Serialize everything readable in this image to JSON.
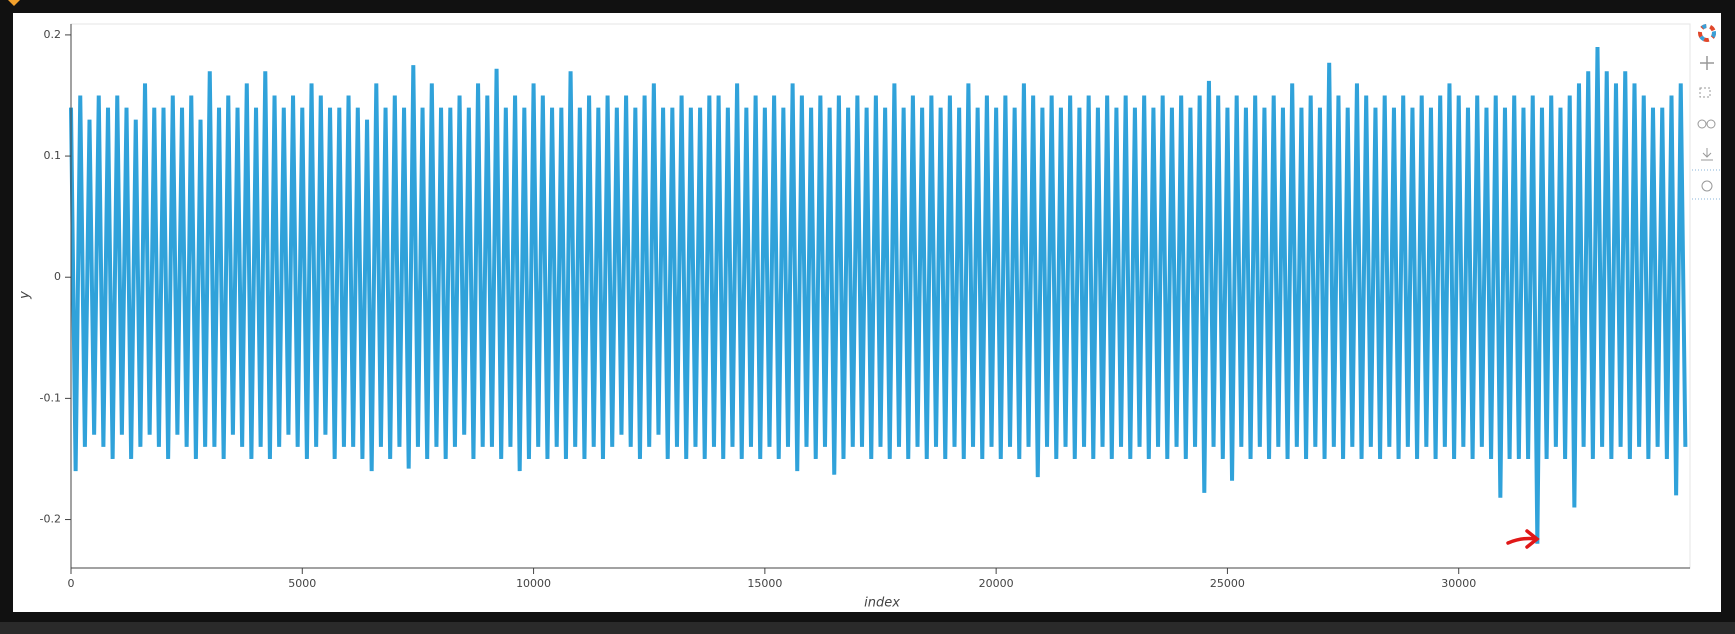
{
  "chart_data": {
    "type": "line",
    "x_label": "index",
    "y_label": "y",
    "color": "#30a2da",
    "xlim": [
      0,
      35000
    ],
    "ylim": [
      -0.24,
      0.209
    ],
    "xticks": [
      0,
      5000,
      10000,
      15000,
      20000,
      25000,
      30000
    ],
    "yticks": [
      -0.2,
      -0.1,
      0,
      0.1,
      0.2
    ],
    "x": [
      0,
      100,
      200,
      300,
      400,
      500,
      600,
      700,
      800,
      900,
      1000,
      1100,
      1200,
      1300,
      1400,
      1500,
      1600,
      1700,
      1800,
      1900,
      2000,
      2100,
      2200,
      2300,
      2400,
      2500,
      2600,
      2700,
      2800,
      2900,
      3000,
      3100,
      3200,
      3300,
      3400,
      3500,
      3600,
      3700,
      3800,
      3900,
      4000,
      4100,
      4200,
      4300,
      4400,
      4500,
      4600,
      4700,
      4800,
      4900,
      5000,
      5100,
      5200,
      5300,
      5400,
      5500,
      5600,
      5700,
      5800,
      5900,
      6000,
      6100,
      6200,
      6300,
      6400,
      6500,
      6600,
      6700,
      6800,
      6900,
      7000,
      7100,
      7200,
      7300,
      7400,
      7500,
      7600,
      7700,
      7800,
      7900,
      8000,
      8100,
      8200,
      8300,
      8400,
      8500,
      8600,
      8700,
      8800,
      8900,
      9000,
      9100,
      9200,
      9300,
      9400,
      9500,
      9600,
      9700,
      9800,
      9900,
      10000,
      10100,
      10200,
      10300,
      10400,
      10500,
      10600,
      10700,
      10800,
      10900,
      11000,
      11100,
      11200,
      11300,
      11400,
      11500,
      11600,
      11700,
      11800,
      11900,
      12000,
      12100,
      12200,
      12300,
      12400,
      12500,
      12600,
      12700,
      12800,
      12900,
      13000,
      13100,
      13200,
      13300,
      13400,
      13500,
      13600,
      13700,
      13800,
      13900,
      14000,
      14100,
      14200,
      14300,
      14400,
      14500,
      14600,
      14700,
      14800,
      14900,
      15000,
      15100,
      15200,
      15300,
      15400,
      15500,
      15600,
      15700,
      15800,
      15900,
      16000,
      16100,
      16200,
      16300,
      16400,
      16500,
      16600,
      16700,
      16800,
      16900,
      17000,
      17100,
      17200,
      17300,
      17400,
      17500,
      17600,
      17700,
      17800,
      17900,
      18000,
      18100,
      18200,
      18300,
      18400,
      18500,
      18600,
      18700,
      18800,
      18900,
      19000,
      19100,
      19200,
      19300,
      19400,
      19500,
      19600,
      19700,
      19800,
      19900,
      20000,
      20100,
      20200,
      20300,
      20400,
      20500,
      20600,
      20700,
      20800,
      20900,
      21000,
      21100,
      21200,
      21300,
      21400,
      21500,
      21600,
      21700,
      21800,
      21900,
      22000,
      22100,
      22200,
      22300,
      22400,
      22500,
      22600,
      22700,
      22800,
      22900,
      23000,
      23100,
      23200,
      23300,
      23400,
      23500,
      23600,
      23700,
      23800,
      23900,
      24000,
      24100,
      24200,
      24300,
      24400,
      24500,
      24600,
      24700,
      24800,
      24900,
      25000,
      25100,
      25200,
      25300,
      25400,
      25500,
      25600,
      25700,
      25800,
      25900,
      26000,
      26100,
      26200,
      26300,
      26400,
      26500,
      26600,
      26700,
      26800,
      26900,
      27000,
      27100,
      27200,
      27300,
      27400,
      27500,
      27600,
      27700,
      27800,
      27900,
      28000,
      28100,
      28200,
      28300,
      28400,
      28500,
      28600,
      28700,
      28800,
      28900,
      29000,
      29100,
      29200,
      29300,
      29400,
      29500,
      29600,
      29700,
      29800,
      29900,
      30000,
      30100,
      30200,
      30300,
      30400,
      30500,
      30600,
      30700,
      30800,
      30900,
      31000,
      31100,
      31200,
      31300,
      31400,
      31500,
      31600,
      31700,
      31800,
      31900,
      32000,
      32100,
      32200,
      32300,
      32400,
      32500,
      32600,
      32700,
      32800,
      32900,
      33000,
      33100,
      33200,
      33300,
      33400,
      33500,
      33600,
      33700,
      33800,
      33900,
      34000,
      34100,
      34200,
      34300,
      34400,
      34500,
      34600,
      34700,
      34800,
      34900
    ],
    "values": [
      0.14,
      -0.16,
      0.15,
      -0.14,
      0.13,
      -0.13,
      0.15,
      -0.14,
      0.14,
      -0.15,
      0.15,
      -0.13,
      0.14,
      -0.15,
      0.13,
      -0.14,
      0.16,
      -0.13,
      0.14,
      -0.14,
      0.14,
      -0.15,
      0.15,
      -0.13,
      0.14,
      -0.14,
      0.15,
      -0.15,
      0.13,
      -0.14,
      0.17,
      -0.14,
      0.14,
      -0.15,
      0.15,
      -0.13,
      0.14,
      -0.14,
      0.16,
      -0.15,
      0.14,
      -0.14,
      0.17,
      -0.15,
      0.15,
      -0.14,
      0.14,
      -0.13,
      0.15,
      -0.14,
      0.14,
      -0.15,
      0.16,
      -0.14,
      0.15,
      -0.13,
      0.14,
      -0.15,
      0.14,
      -0.14,
      0.15,
      -0.14,
      0.14,
      -0.15,
      0.13,
      -0.16,
      0.16,
      -0.14,
      0.14,
      -0.15,
      0.15,
      -0.14,
      0.14,
      -0.158,
      0.175,
      -0.14,
      0.14,
      -0.15,
      0.16,
      -0.14,
      0.14,
      -0.15,
      0.14,
      -0.14,
      0.15,
      -0.13,
      0.14,
      -0.15,
      0.16,
      -0.14,
      0.15,
      -0.14,
      0.172,
      -0.15,
      0.14,
      -0.14,
      0.15,
      -0.16,
      0.14,
      -0.15,
      0.16,
      -0.14,
      0.15,
      -0.15,
      0.14,
      -0.14,
      0.14,
      -0.15,
      0.17,
      -0.14,
      0.14,
      -0.15,
      0.15,
      -0.14,
      0.14,
      -0.15,
      0.15,
      -0.14,
      0.14,
      -0.13,
      0.15,
      -0.14,
      0.14,
      -0.15,
      0.15,
      -0.14,
      0.16,
      -0.13,
      0.14,
      -0.15,
      0.14,
      -0.14,
      0.15,
      -0.15,
      0.14,
      -0.14,
      0.14,
      -0.15,
      0.15,
      -0.14,
      0.15,
      -0.15,
      0.14,
      -0.14,
      0.16,
      -0.15,
      0.14,
      -0.14,
      0.15,
      -0.15,
      0.14,
      -0.14,
      0.15,
      -0.15,
      0.14,
      -0.14,
      0.16,
      -0.16,
      0.15,
      -0.14,
      0.14,
      -0.15,
      0.15,
      -0.14,
      0.14,
      -0.163,
      0.15,
      -0.15,
      0.14,
      -0.14,
      0.15,
      -0.14,
      0.14,
      -0.15,
      0.15,
      -0.14,
      0.14,
      -0.15,
      0.16,
      -0.14,
      0.14,
      -0.15,
      0.15,
      -0.14,
      0.14,
      -0.15,
      0.15,
      -0.14,
      0.14,
      -0.15,
      0.15,
      -0.14,
      0.14,
      -0.15,
      0.16,
      -0.14,
      0.14,
      -0.15,
      0.15,
      -0.14,
      0.14,
      -0.15,
      0.15,
      -0.14,
      0.14,
      -0.15,
      0.16,
      -0.14,
      0.15,
      -0.165,
      0.14,
      -0.14,
      0.15,
      -0.15,
      0.14,
      -0.14,
      0.15,
      -0.15,
      0.14,
      -0.14,
      0.15,
      -0.15,
      0.14,
      -0.14,
      0.15,
      -0.15,
      0.14,
      -0.14,
      0.15,
      -0.15,
      0.14,
      -0.14,
      0.15,
      -0.15,
      0.14,
      -0.14,
      0.15,
      -0.15,
      0.14,
      -0.14,
      0.15,
      -0.15,
      0.14,
      -0.14,
      0.15,
      -0.178,
      0.162,
      -0.14,
      0.15,
      -0.15,
      0.14,
      -0.168,
      0.15,
      -0.14,
      0.14,
      -0.15,
      0.15,
      -0.14,
      0.14,
      -0.15,
      0.15,
      -0.14,
      0.14,
      -0.15,
      0.16,
      -0.14,
      0.14,
      -0.15,
      0.15,
      -0.14,
      0.14,
      -0.15,
      0.177,
      -0.14,
      0.15,
      -0.15,
      0.14,
      -0.14,
      0.16,
      -0.15,
      0.15,
      -0.14,
      0.14,
      -0.15,
      0.15,
      -0.14,
      0.14,
      -0.15,
      0.15,
      -0.14,
      0.14,
      -0.15,
      0.15,
      -0.14,
      0.14,
      -0.15,
      0.15,
      -0.14,
      0.16,
      -0.15,
      0.15,
      -0.14,
      0.14,
      -0.15,
      0.15,
      -0.14,
      0.14,
      -0.15,
      0.15,
      -0.182,
      0.14,
      -0.15,
      0.15,
      -0.15,
      0.14,
      -0.15,
      0.15,
      -0.22,
      0.14,
      -0.15,
      0.15,
      -0.14,
      0.14,
      -0.15,
      0.15,
      -0.19,
      0.16,
      -0.14,
      0.17,
      -0.15,
      0.19,
      -0.14,
      0.17,
      -0.15,
      0.16,
      -0.14,
      0.17,
      -0.15,
      0.16,
      -0.14,
      0.15,
      -0.15,
      0.14,
      -0.14,
      0.14,
      -0.15,
      0.15,
      -0.18,
      0.16,
      -0.14
    ]
  }
}
